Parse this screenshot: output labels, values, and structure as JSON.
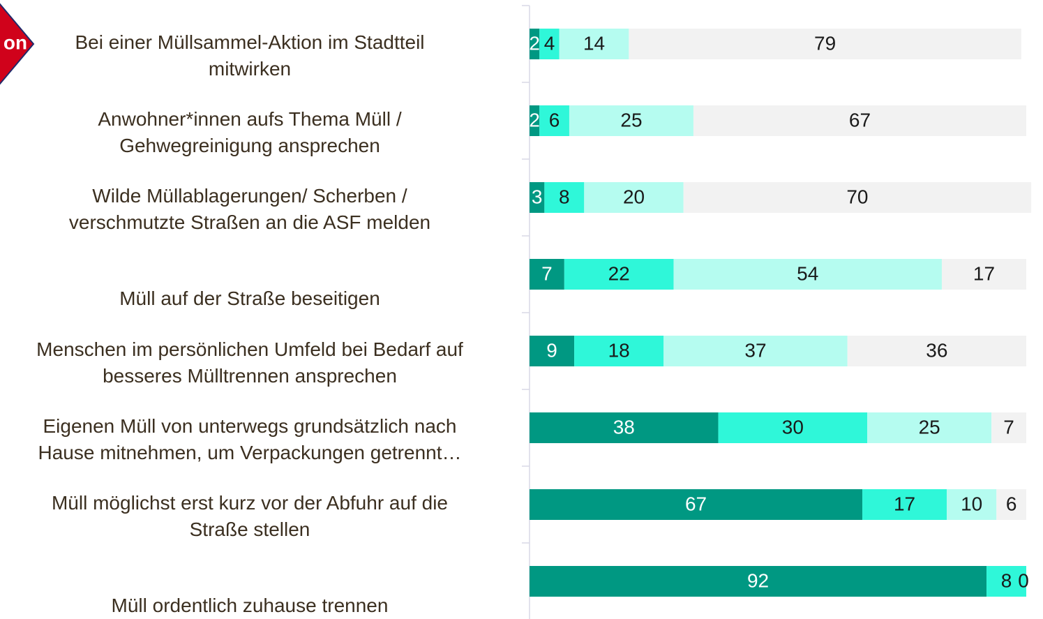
{
  "badge_text": "on",
  "chart_data": {
    "type": "stacked-bar-horizontal",
    "categories": [
      "Bei einer Müllsammel-Aktion im Stadtteil\nmitwirken",
      "Anwohner*innen aufs Thema Müll /\nGehwegreinigung ansprechen",
      "Wilde Müllablagerungen/ Scherben /\nverschmutzte Straßen an die ASF melden",
      "Müll auf der Straße beseitigen",
      "Menschen im persönlichen Umfeld bei Bedarf auf\nbesseres Mülltrennen ansprechen",
      "Eigenen Müll von unterwegs grundsätzlich nach\nHause mitnehmen, um Verpackungen getrennt…",
      "Müll möglichst erst kurz vor der Abfuhr auf die\nStraße stellen",
      "Müll ordentlich zuhause trennen"
    ],
    "series": [
      {
        "color": "#009882",
        "label_color": "#ffffff",
        "values": [
          2,
          2,
          3,
          7,
          9,
          38,
          67,
          92
        ]
      },
      {
        "color": "#2ff7d9",
        "label_color": "#1a1a1a",
        "values": [
          4,
          6,
          8,
          22,
          18,
          30,
          17,
          8
        ]
      },
      {
        "color": "#b5fcf0",
        "label_color": "#1a1a1a",
        "values": [
          14,
          25,
          20,
          54,
          37,
          25,
          10,
          0
        ]
      },
      {
        "color": "#f2f2f2",
        "label_color": "#1a1a1a",
        "values": [
          79,
          67,
          70,
          17,
          36,
          7,
          6,
          null
        ]
      }
    ],
    "xlim": [
      0,
      100
    ]
  }
}
